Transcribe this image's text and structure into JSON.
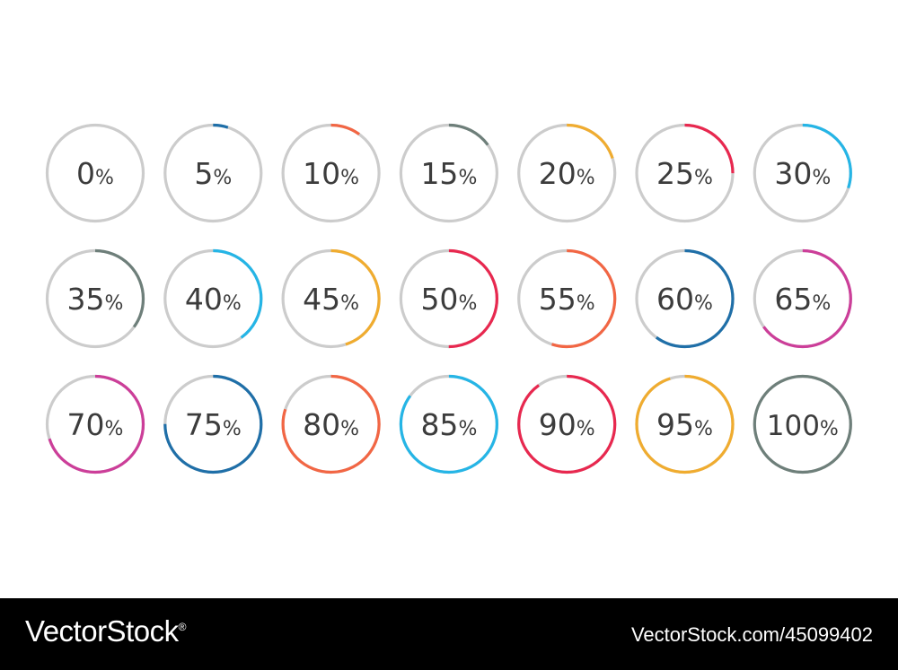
{
  "chart_data": {
    "type": "progress-rings",
    "track_color": "#cccccc",
    "rings": [
      {
        "value": 0,
        "number": "0",
        "unit": "%",
        "color": "#cccccc"
      },
      {
        "value": 5,
        "number": "5",
        "unit": "%",
        "color": "#1f6fa8"
      },
      {
        "value": 10,
        "number": "10",
        "unit": "%",
        "color": "#f26644"
      },
      {
        "value": 15,
        "number": "15",
        "unit": "%",
        "color": "#6e7f7a"
      },
      {
        "value": 20,
        "number": "20",
        "unit": "%",
        "color": "#f0ac2f"
      },
      {
        "value": 25,
        "number": "25",
        "unit": "%",
        "color": "#e8284f"
      },
      {
        "value": 30,
        "number": "30",
        "unit": "%",
        "color": "#25b5e6"
      },
      {
        "value": 35,
        "number": "35",
        "unit": "%",
        "color": "#6e7f7a"
      },
      {
        "value": 40,
        "number": "40",
        "unit": "%",
        "color": "#25b5e6"
      },
      {
        "value": 45,
        "number": "45",
        "unit": "%",
        "color": "#f0ac2f"
      },
      {
        "value": 50,
        "number": "50",
        "unit": "%",
        "color": "#e8284f"
      },
      {
        "value": 55,
        "number": "55",
        "unit": "%",
        "color": "#f26644"
      },
      {
        "value": 60,
        "number": "60",
        "unit": "%",
        "color": "#1f6fa8"
      },
      {
        "value": 65,
        "number": "65",
        "unit": "%",
        "color": "#cc3e99"
      },
      {
        "value": 70,
        "number": "70",
        "unit": "%",
        "color": "#cc3e99"
      },
      {
        "value": 75,
        "number": "75",
        "unit": "%",
        "color": "#1f6fa8"
      },
      {
        "value": 80,
        "number": "80",
        "unit": "%",
        "color": "#f26644"
      },
      {
        "value": 85,
        "number": "85",
        "unit": "%",
        "color": "#25b5e6"
      },
      {
        "value": 90,
        "number": "90",
        "unit": "%",
        "color": "#e8284f"
      },
      {
        "value": 95,
        "number": "95",
        "unit": "%",
        "color": "#f0ac2f"
      },
      {
        "value": 100,
        "number": "100",
        "unit": "%",
        "color": "#6e7f7a"
      }
    ]
  },
  "footer": {
    "brand": "VectorStock",
    "brand_mark": "®",
    "stock_id": "VectorStock.com/45099402"
  }
}
